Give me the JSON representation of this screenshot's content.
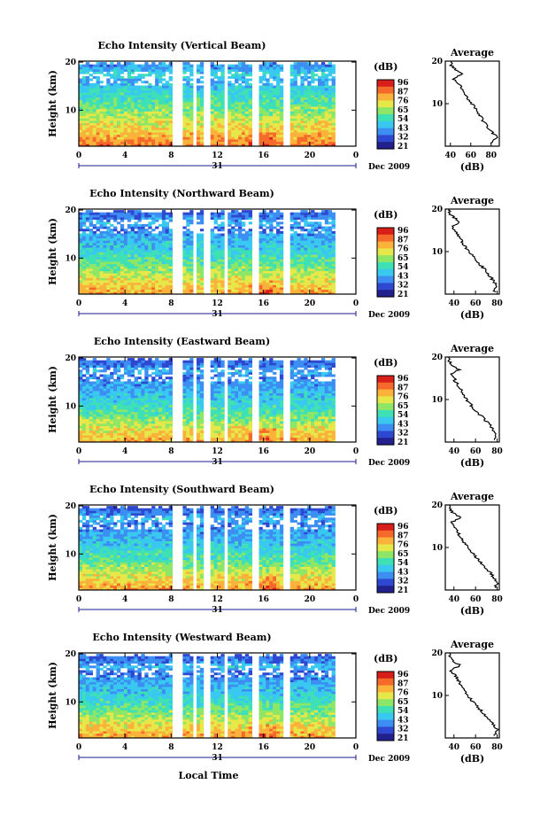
{
  "figure": {
    "local_time_label": "Local Time",
    "day_label": "31",
    "month_label": "Dec 2009",
    "colorbar_title": "(dB)",
    "colorbar_ticks": [
      "96",
      "87",
      "76",
      "65",
      "54",
      "43",
      "32",
      "21"
    ],
    "average_title": "Average",
    "average_xlabel": "(dB)",
    "height_label": "Height (km)",
    "x_ticks": [
      "0",
      "4",
      "8",
      "12",
      "16",
      "20",
      "0"
    ],
    "y_ticks": [
      "20",
      "10"
    ],
    "colorscale": [
      "#22208c",
      "#2e49d1",
      "#3d8ef2",
      "#38c8f0",
      "#3ee0b5",
      "#8ee666",
      "#e6e84a",
      "#fbb23a",
      "#f56a2a",
      "#d91f1a"
    ]
  },
  "chart_data": [
    {
      "type": "heatmap",
      "title": "Echo Intensity (Vertical Beam)",
      "xlabel": "Local Time",
      "ylabel": "Height (km)",
      "xlim": [
        0,
        24
      ],
      "ylim": [
        0,
        20
      ],
      "zlim": [
        21,
        96
      ],
      "zlabel": "(dB)",
      "data_gaps_hours": [
        [
          8.2,
          8.9
        ],
        [
          9.9,
          10.1
        ],
        [
          10.9,
          11.5
        ],
        [
          12.6,
          13.0
        ],
        [
          15.0,
          15.6
        ],
        [
          17.8,
          18.2
        ],
        [
          22.3,
          24
        ]
      ],
      "average_profile": {
        "title": "Average",
        "xlabel": "(dB)",
        "xticks": [
          "40",
          "60",
          "80"
        ],
        "xlim": [
          35,
          88
        ],
        "height_km": [
          1,
          2,
          4,
          6,
          8,
          10,
          12,
          14,
          16,
          17,
          18,
          19,
          20
        ],
        "db": [
          80,
          86,
          78,
          72,
          67,
          61,
          55,
          50,
          43,
          52,
          45,
          41,
          40
        ]
      }
    },
    {
      "type": "heatmap",
      "title": "Echo Intensity (Northward Beam)",
      "xlabel": "Local Time",
      "ylabel": "Height (km)",
      "xlim": [
        0,
        24
      ],
      "ylim": [
        0,
        20
      ],
      "zlim": [
        21,
        96
      ],
      "zlabel": "(dB)",
      "data_gaps_hours": [
        [
          8.2,
          8.9
        ],
        [
          9.9,
          10.1
        ],
        [
          10.9,
          11.5
        ],
        [
          12.6,
          13.0
        ],
        [
          15.0,
          15.6
        ],
        [
          17.8,
          18.2
        ],
        [
          22.3,
          24
        ]
      ],
      "average_profile": {
        "title": "Average",
        "xlabel": "(dB)",
        "xticks": [
          "40",
          "60",
          "80"
        ],
        "xlim": [
          32,
          82
        ],
        "height_km": [
          1,
          2,
          4,
          6,
          8,
          10,
          12,
          14,
          16,
          17,
          18,
          19,
          20
        ],
        "db": [
          78,
          80,
          74,
          68,
          60,
          54,
          48,
          44,
          38,
          46,
          40,
          36,
          35
        ]
      }
    },
    {
      "type": "heatmap",
      "title": "Echo Intensity (Eastward Beam)",
      "xlabel": "Local Time",
      "ylabel": "Height (km)",
      "xlim": [
        0,
        24
      ],
      "ylim": [
        0,
        20
      ],
      "zlim": [
        21,
        96
      ],
      "zlabel": "(dB)",
      "data_gaps_hours": [
        [
          8.2,
          8.9
        ],
        [
          9.9,
          10.1
        ],
        [
          10.9,
          11.5
        ],
        [
          12.6,
          13.0
        ],
        [
          15.0,
          15.6
        ],
        [
          17.8,
          18.2
        ],
        [
          22.3,
          24
        ]
      ],
      "average_profile": {
        "title": "Average",
        "xlabel": "(dB)",
        "xticks": [
          "40",
          "60",
          "80"
        ],
        "xlim": [
          32,
          82
        ],
        "height_km": [
          1,
          2,
          4,
          6,
          8,
          10,
          12,
          14,
          16,
          17,
          18,
          19,
          20
        ],
        "db": [
          78,
          79,
          73,
          66,
          58,
          52,
          47,
          42,
          38,
          45,
          39,
          36,
          35
        ]
      }
    },
    {
      "type": "heatmap",
      "title": "Echo Intensity (Southward Beam)",
      "xlabel": "Local Time",
      "ylabel": "Height (km)",
      "xlim": [
        0,
        24
      ],
      "ylim": [
        0,
        20
      ],
      "zlim": [
        21,
        96
      ],
      "zlabel": "(dB)",
      "data_gaps_hours": [
        [
          8.2,
          8.9
        ],
        [
          9.9,
          10.1
        ],
        [
          10.9,
          11.5
        ],
        [
          12.6,
          13.0
        ],
        [
          15.0,
          15.6
        ],
        [
          17.8,
          18.2
        ],
        [
          22.3,
          24
        ]
      ],
      "average_profile": {
        "title": "Average",
        "xlabel": "(dB)",
        "xticks": [
          "40",
          "60",
          "80"
        ],
        "xlim": [
          32,
          82
        ],
        "height_km": [
          1,
          2,
          4,
          6,
          8,
          10,
          12,
          14,
          16,
          17,
          18,
          19,
          20
        ],
        "db": [
          79,
          80,
          74,
          67,
          59,
          53,
          47,
          43,
          38,
          46,
          40,
          36,
          35
        ]
      }
    },
    {
      "type": "heatmap",
      "title": "Echo Intensity (Westward Beam)",
      "xlabel": "Local Time",
      "ylabel": "Height (km)",
      "xlim": [
        0,
        24
      ],
      "ylim": [
        0,
        20
      ],
      "zlim": [
        21,
        96
      ],
      "zlabel": "(dB)",
      "data_gaps_hours": [
        [
          8.2,
          8.9
        ],
        [
          9.9,
          10.1
        ],
        [
          10.9,
          11.5
        ],
        [
          12.6,
          13.0
        ],
        [
          15.0,
          15.6
        ],
        [
          17.8,
          18.2
        ],
        [
          22.3,
          24
        ]
      ],
      "average_profile": {
        "title": "Average",
        "xlabel": "(dB)",
        "xticks": [
          "40",
          "60",
          "80"
        ],
        "xlim": [
          32,
          82
        ],
        "height_km": [
          1,
          2,
          4,
          6,
          8,
          10,
          12,
          14,
          16,
          17,
          18,
          19,
          20
        ],
        "db": [
          78,
          80,
          74,
          67,
          59,
          53,
          47,
          43,
          37,
          46,
          40,
          36,
          35
        ]
      }
    }
  ]
}
